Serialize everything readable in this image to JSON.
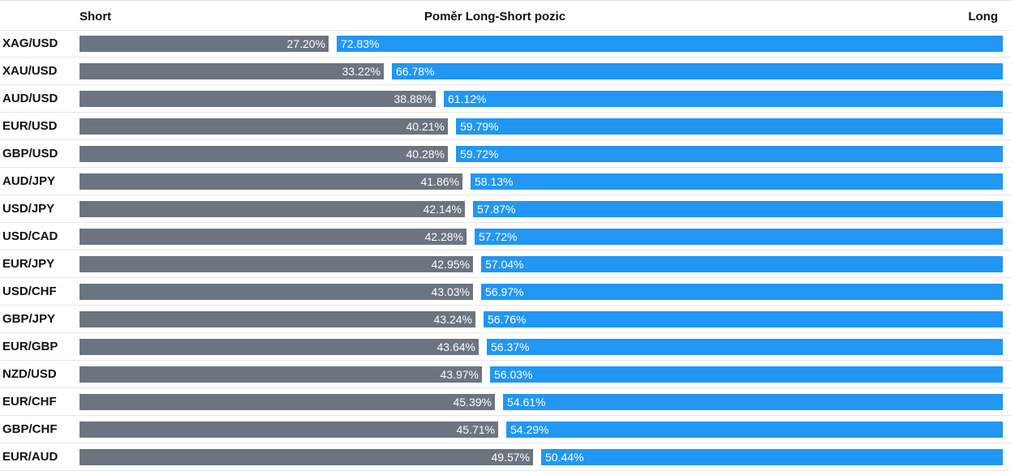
{
  "header": {
    "short_label": "Short",
    "title": "Poměr Long-Short pozic",
    "long_label": "Long"
  },
  "colors": {
    "short": "#6c7480",
    "long": "#2196f3"
  },
  "chart_data": {
    "type": "bar",
    "title": "Poměr Long-Short pozic",
    "categories": [
      "XAG/USD",
      "XAU/USD",
      "AUD/USD",
      "EUR/USD",
      "GBP/USD",
      "AUD/JPY",
      "USD/JPY",
      "USD/CAD",
      "EUR/JPY",
      "USD/CHF",
      "GBP/JPY",
      "EUR/GBP",
      "NZD/USD",
      "EUR/CHF",
      "GBP/CHF",
      "EUR/AUD"
    ],
    "series": [
      {
        "name": "Short",
        "values": [
          27.2,
          33.22,
          38.88,
          40.21,
          40.28,
          41.86,
          42.14,
          42.28,
          42.95,
          43.03,
          43.24,
          43.64,
          43.97,
          45.39,
          45.71,
          49.57
        ],
        "labels": [
          "27.20%",
          "33.22%",
          "38.88%",
          "40.21%",
          "40.28%",
          "41.86%",
          "42.14%",
          "42.28%",
          "42.95%",
          "43.03%",
          "43.24%",
          "43.64%",
          "43.97%",
          "45.39%",
          "45.71%",
          "49.57%"
        ]
      },
      {
        "name": "Long",
        "values": [
          72.83,
          66.78,
          61.12,
          59.79,
          59.72,
          58.13,
          57.87,
          57.72,
          57.04,
          56.97,
          56.76,
          56.37,
          56.03,
          54.61,
          54.29,
          50.44
        ],
        "labels": [
          "72.83%",
          "66.78%",
          "61.12%",
          "59.79%",
          "59.72%",
          "58.13%",
          "57.87%",
          "57.72%",
          "57.04%",
          "56.97%",
          "56.76%",
          "56.37%",
          "56.03%",
          "54.61%",
          "54.29%",
          "50.44%"
        ]
      }
    ]
  }
}
